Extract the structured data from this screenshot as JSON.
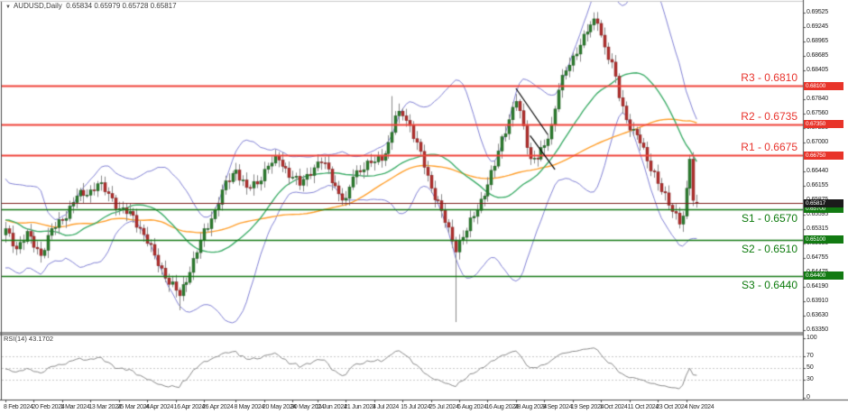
{
  "window": {
    "marker": "▼",
    "symbol_period": "AUDUSD,Daily",
    "ohlc_text": "0.65834 0.65979 0.65728 0.65817"
  },
  "colors": {
    "bull": "#2f7d31",
    "bull_edge": "#1d5a20",
    "bear": "#b23230",
    "bear_edge": "#7e1f1d",
    "wick": "#8a8a8a",
    "bollinger": "#8383d6",
    "ma_fast": "#3fae6a",
    "ma_slow": "#ffa02e",
    "resistance_line": "#f0443a",
    "support_line": "#157a15",
    "current_line": "#bdbdbd",
    "rsi_line": "#8c8c8c",
    "rsi_grid": "#c9c9c9",
    "axis_line": "#4a4a4a",
    "pane_border": "#9a9a9a",
    "trendline": "#000000"
  },
  "levels": {
    "resistances": [
      {
        "name": "R3",
        "label": "R3 - 0.6810",
        "price": 0.681,
        "badge": "0.68100"
      },
      {
        "name": "R2",
        "label": "R2 - 0.6735",
        "price": 0.6735,
        "badge": "0.67350"
      },
      {
        "name": "R1",
        "label": "R1 - 0.6675",
        "price": 0.6675,
        "badge": "0.66750"
      }
    ],
    "supports": [
      {
        "name": "S1",
        "label": "S1 - 0.6570",
        "price": 0.657,
        "badge": "0.65700"
      },
      {
        "name": "S2",
        "label": "S2 - 0.6510",
        "price": 0.651,
        "badge": "0.65100"
      },
      {
        "name": "S3",
        "label": "S3 - 0.6440",
        "price": 0.644,
        "badge": "0.64400"
      }
    ]
  },
  "current_price": {
    "price": 0.65817,
    "badge": "0.65817"
  },
  "price_axis": {
    "ticks": [
      {
        "text": "0.69525",
        "price": 0.69525
      },
      {
        "text": "0.69245",
        "price": 0.69245
      },
      {
        "text": "0.68965",
        "price": 0.68965
      },
      {
        "text": "0.68685",
        "price": 0.68685
      },
      {
        "text": "0.68405",
        "price": 0.68405
      },
      {
        "text": "0.67840",
        "price": 0.6784
      },
      {
        "text": "0.67560",
        "price": 0.6756
      },
      {
        "text": "0.67280",
        "price": 0.6728
      },
      {
        "text": "0.67000",
        "price": 0.67
      },
      {
        "text": "0.66440",
        "price": 0.6644
      },
      {
        "text": "0.66155",
        "price": 0.66155
      },
      {
        "text": "0.65875",
        "price": 0.65875
      },
      {
        "text": "0.65595",
        "price": 0.65595
      },
      {
        "text": "0.65315",
        "price": 0.65315
      },
      {
        "text": "0.65035",
        "price": 0.65035
      },
      {
        "text": "0.64755",
        "price": 0.64755
      },
      {
        "text": "0.64475",
        "price": 0.64475
      },
      {
        "text": "0.64190",
        "price": 0.6419
      },
      {
        "text": "0.63910",
        "price": 0.6391
      },
      {
        "text": "0.63630",
        "price": 0.6363
      },
      {
        "text": "0.63350",
        "price": 0.6335
      }
    ]
  },
  "time_axis": {
    "labels": [
      {
        "text": "8 Feb 2024",
        "i": 0
      },
      {
        "text": "20 Feb 2024",
        "i": 8
      },
      {
        "text": "1 Mar 2024",
        "i": 16
      },
      {
        "text": "13 Mar 2024",
        "i": 24
      },
      {
        "text": "25 Mar 2024",
        "i": 32
      },
      {
        "text": "4 Apr 2024",
        "i": 40
      },
      {
        "text": "16 Apr 2024",
        "i": 48
      },
      {
        "text": "26 Apr 2024",
        "i": 56
      },
      {
        "text": "8 May 2024",
        "i": 65
      },
      {
        "text": "20 May 2024",
        "i": 73
      },
      {
        "text": "30 May 2024",
        "i": 81
      },
      {
        "text": "11 Jun 2024",
        "i": 88
      },
      {
        "text": "21 Jun 2024",
        "i": 96
      },
      {
        "text": "3 Jul 2024",
        "i": 104
      },
      {
        "text": "15 Jul 2024",
        "i": 112
      },
      {
        "text": "25 Jul 2024",
        "i": 120
      },
      {
        "text": "6 Aug 2024",
        "i": 128
      },
      {
        "text": "16 Aug 2024",
        "i": 136
      },
      {
        "text": "28 Aug 2024",
        "i": 144
      },
      {
        "text": "9 Sep 2024",
        "i": 152
      },
      {
        "text": "19 Sep 2024",
        "i": 160
      },
      {
        "text": "1 Oct 2024",
        "i": 168
      },
      {
        "text": "11 Oct 2024",
        "i": 176
      },
      {
        "text": "23 Oct 2024",
        "i": 184
      },
      {
        "text": "4 Nov 2024",
        "i": 192
      }
    ]
  },
  "rsi": {
    "label": "RSI(14) 43.1702",
    "value": 43.1702,
    "scale": [
      {
        "text": "100",
        "v": 100
      },
      {
        "text": "70",
        "v": 70
      },
      {
        "text": "50",
        "v": 50
      },
      {
        "text": "30",
        "v": 30
      },
      {
        "text": "0",
        "v": 0
      }
    ],
    "dotted_levels": [
      70,
      50,
      30
    ]
  },
  "chart_data": {
    "type": "candlestick",
    "symbol": "AUDUSD",
    "timeframe": "Daily",
    "candle_count": 196,
    "ylim": [
      0.63255,
      0.69771
    ],
    "last_candle": {
      "open": 0.65834,
      "high": 0.65979,
      "low": 0.65728,
      "close": 0.65817
    },
    "close_path": [
      [
        0,
        0.6528
      ],
      [
        3,
        0.6495
      ],
      [
        6,
        0.652
      ],
      [
        10,
        0.6482
      ],
      [
        13,
        0.6528
      ],
      [
        17,
        0.656
      ],
      [
        20,
        0.6595
      ],
      [
        24,
        0.6605
      ],
      [
        26,
        0.6618
      ],
      [
        29,
        0.66
      ],
      [
        32,
        0.657
      ],
      [
        36,
        0.6556
      ],
      [
        39,
        0.652
      ],
      [
        42,
        0.6478
      ],
      [
        46,
        0.6428
      ],
      [
        49,
        0.6402
      ],
      [
        53,
        0.6468
      ],
      [
        56,
        0.6525
      ],
      [
        59,
        0.6568
      ],
      [
        62,
        0.6618
      ],
      [
        65,
        0.6648
      ],
      [
        68,
        0.6608
      ],
      [
        71,
        0.6622
      ],
      [
        74,
        0.6655
      ],
      [
        77,
        0.6668
      ],
      [
        80,
        0.6638
      ],
      [
        83,
        0.6618
      ],
      [
        86,
        0.6645
      ],
      [
        89,
        0.6662
      ],
      [
        91,
        0.6645
      ],
      [
        94,
        0.66
      ],
      [
        96,
        0.6582
      ],
      [
        98,
        0.6638
      ],
      [
        101,
        0.6652
      ],
      [
        104,
        0.6662
      ],
      [
        106,
        0.6672
      ],
      [
        108,
        0.6695
      ],
      [
        110,
        0.6748
      ],
      [
        112,
        0.6758
      ],
      [
        114,
        0.6732
      ],
      [
        116,
        0.6695
      ],
      [
        118,
        0.6655
      ],
      [
        120,
        0.6612
      ],
      [
        122,
        0.6582
      ],
      [
        124,
        0.6545
      ],
      [
        126,
        0.651
      ],
      [
        127,
        0.6495
      ],
      [
        130,
        0.6528
      ],
      [
        133,
        0.6572
      ],
      [
        136,
        0.6618
      ],
      [
        138,
        0.6655
      ],
      [
        140,
        0.6708
      ],
      [
        142,
        0.6745
      ],
      [
        144,
        0.6782
      ],
      [
        146,
        0.6728
      ],
      [
        148,
        0.6668
      ],
      [
        150,
        0.6672
      ],
      [
        152,
        0.669
      ],
      [
        154,
        0.6732
      ],
      [
        156,
        0.6808
      ],
      [
        158,
        0.6838
      ],
      [
        160,
        0.6862
      ],
      [
        162,
        0.6895
      ],
      [
        164,
        0.6918
      ],
      [
        166,
        0.6932
      ],
      [
        167,
        0.6937
      ],
      [
        169,
        0.6885
      ],
      [
        171,
        0.6852
      ],
      [
        173,
        0.679
      ],
      [
        175,
        0.6745
      ],
      [
        177,
        0.6722
      ],
      [
        179,
        0.67
      ],
      [
        181,
        0.6665
      ],
      [
        183,
        0.664
      ],
      [
        185,
        0.6605
      ],
      [
        187,
        0.6578
      ],
      [
        189,
        0.656
      ],
      [
        190,
        0.6548
      ],
      [
        191,
        0.6558
      ],
      [
        192,
        0.6602
      ],
      [
        193,
        0.6668
      ],
      [
        194,
        0.6585
      ],
      [
        195,
        0.65817
      ]
    ],
    "special_highs": {
      "109": 0.679,
      "167": 0.6942,
      "193": 0.6676
    },
    "special_lows": {
      "49": 0.6373,
      "127": 0.635
    },
    "indicators": {
      "bollinger_period": 20,
      "bollinger_dev": 2,
      "ma_fast_period": 25,
      "ma_slow_period": 55,
      "rsi_period": 14,
      "rsi_value": 43.1702
    },
    "trendlines": [
      {
        "i1": 144,
        "p1": 0.6805,
        "i2": 153,
        "p2": 0.6715
      },
      {
        "i1": 148,
        "p1": 0.6713,
        "i2": 155,
        "p2": 0.6647
      }
    ]
  }
}
